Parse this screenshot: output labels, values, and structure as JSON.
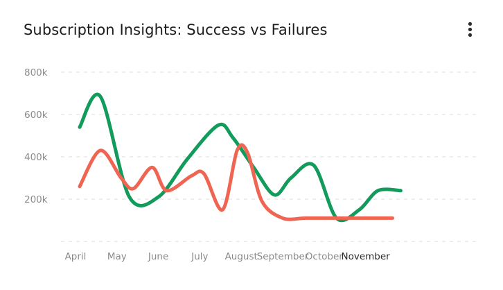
{
  "card": {
    "title": "Subscription Insights: Success vs Failures",
    "menu_icon": "more-vertical-icon"
  },
  "colors": {
    "success": "#139b5c",
    "failures": "#f06552",
    "grid": "#dcdcdc",
    "tick": "#8a8a8a",
    "active_tick": "#2a2a2a"
  },
  "chart_data": {
    "type": "line",
    "categories": [
      "April",
      "May",
      "June",
      "July",
      "August",
      "September",
      "October",
      "November"
    ],
    "y_ticks": [
      "800k",
      "600k",
      "400k",
      "200k"
    ],
    "ylim": [
      0,
      800
    ],
    "grid": true,
    "active_category": "November",
    "series": [
      {
        "key": "success",
        "x": [
          0.1,
          0.6,
          1.3,
          2.0,
          2.7,
          3.45,
          3.8,
          4.3,
          4.8,
          5.2,
          5.75,
          6.3,
          6.85,
          7.3,
          7.85
        ],
        "values": [
          540,
          685,
          210,
          210,
          390,
          550,
          490,
          350,
          220,
          300,
          360,
          110,
          150,
          240,
          240
        ]
      },
      {
        "key": "failures",
        "x": [
          0.1,
          0.6,
          1.1,
          1.4,
          1.85,
          2.2,
          2.8,
          3.1,
          3.55,
          3.9,
          4.15,
          4.5,
          5.0,
          5.55,
          6.2,
          6.75,
          7.25,
          7.65
        ],
        "values": [
          260,
          430,
          300,
          250,
          350,
          240,
          310,
          320,
          150,
          430,
          420,
          190,
          110,
          110,
          110,
          110,
          110,
          110
        ]
      }
    ]
  }
}
